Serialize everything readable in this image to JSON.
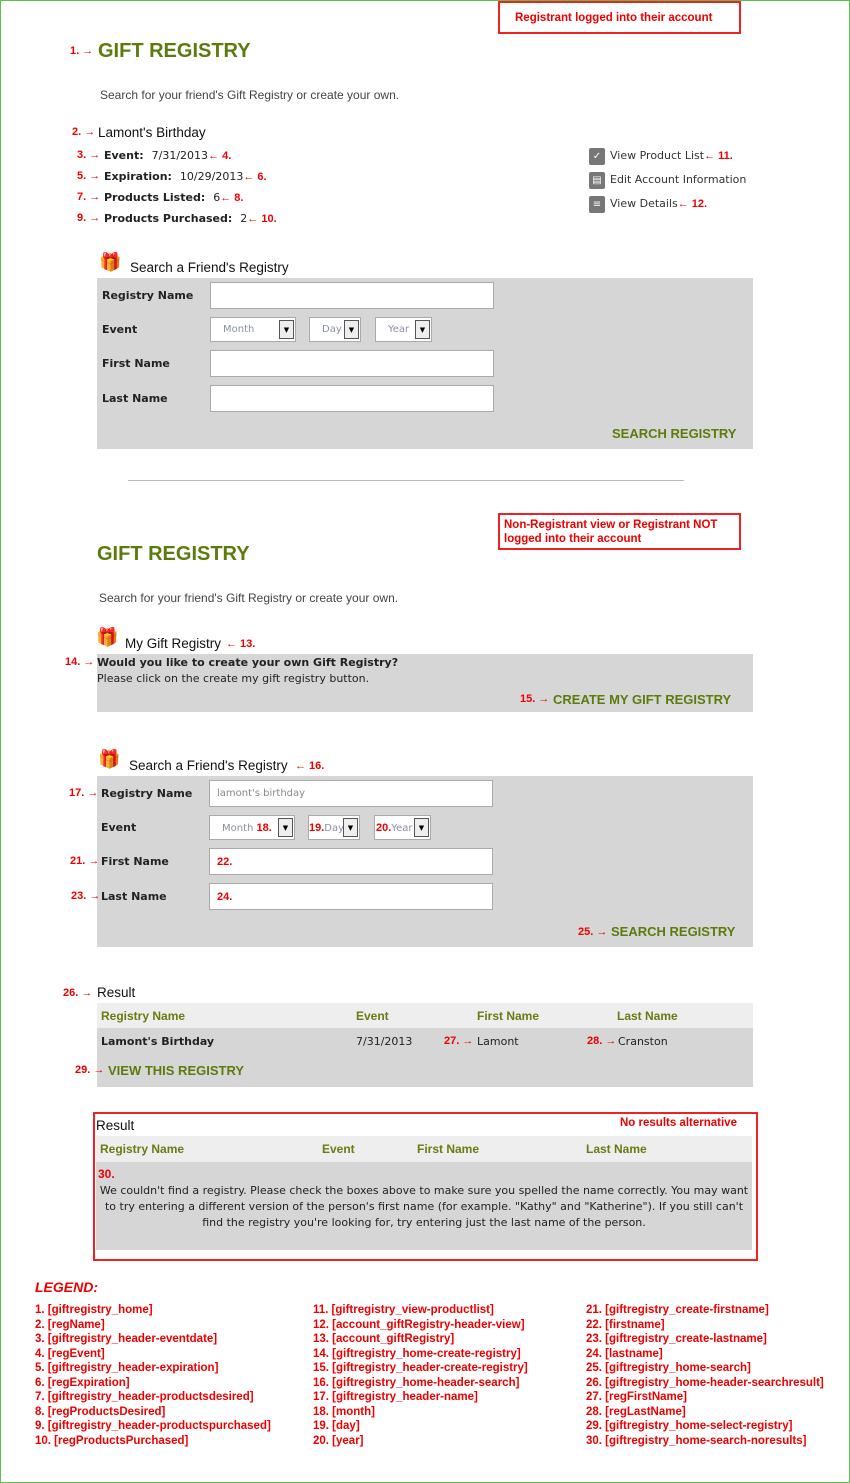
{
  "notes": {
    "logged_in": "Registrant logged into their account",
    "not_logged_in": "Non-Registrant view or Registrant NOT logged into their account",
    "no_results": "No results alternative"
  },
  "top": {
    "title": "GIFT REGISTRY",
    "subtitle": "Search for your friend's Gift Registry or create your own.",
    "registry_name": "Lamont's Birthday",
    "details": [
      {
        "label": "Event:",
        "value": "7/31/2013",
        "a1": "3. →",
        "a2": "← 4."
      },
      {
        "label": "Expiration:",
        "value": "10/29/2013",
        "a1": "5. →",
        "a2": "← 6."
      },
      {
        "label": "Products Listed:",
        "value": "6",
        "a1": "7. →",
        "a2": "← 8."
      },
      {
        "label": "Products Purchased:",
        "value": "2",
        "a1": "9. →",
        "a2": "← 10."
      }
    ],
    "links": [
      {
        "label": "View Product List",
        "icon": "clipboard-check-icon",
        "ann": "← 11."
      },
      {
        "label": "Edit Account Information",
        "icon": "id-card-icon",
        "ann": ""
      },
      {
        "label": "View Details",
        "icon": "document-icon",
        "ann": "← 12."
      }
    ],
    "search_title": "Search a Friend's Registry",
    "fields": {
      "registry_name": "Registry Name",
      "event": "Event",
      "first_name": "First Name",
      "last_name": "Last Name"
    },
    "month": "Month",
    "day": "Day",
    "year": "Year",
    "search_btn": "SEARCH REGISTRY"
  },
  "bottom": {
    "title": "GIFT REGISTRY",
    "subtitle": "Search for your friend's Gift Registry or create your own.",
    "my_registry": "My Gift Registry",
    "create_q": "Would you like to create your own Gift Registry?",
    "create_hint": "Please click on the create my gift registry button.",
    "create_btn": "CREATE MY GIFT REGISTRY",
    "search_title": "Search a Friend's Registry",
    "fields": {
      "registry_name": "Registry Name",
      "event": "Event",
      "first_name": "First Name",
      "last_name": "Last Name"
    },
    "registry_placeholder": "lamont's birthday",
    "month": "Month",
    "day": "Day",
    "year": "Year",
    "search_btn": "SEARCH REGISTRY",
    "result_title": "Result",
    "columns": [
      "Registry Name",
      "Event",
      "First Name",
      "Last Name"
    ],
    "row": {
      "name": "Lamont's Birthday",
      "event": "7/31/2013",
      "first": "Lamont",
      "last": "Cranston"
    },
    "view_btn": "VIEW THIS REGISTRY",
    "noresult_title": "Result",
    "noresult_text": "We couldn't find a registry. Please check the boxes above to make sure you spelled the name correctly. You may want to try entering a different version of the person's first name (for example. \"Kathy\" and \"Katherine\"). If you still can't find the registry you're looking for, try entering just the last name of the person."
  },
  "ann": {
    "a1": "1. →",
    "a2": "2. →",
    "a13": "← 13.",
    "a14": "14. →",
    "a15": "15. →",
    "a16": "← 16.",
    "a17": "17. →",
    "a18": "18.",
    "a19": "19.",
    "a20": "20.",
    "a21": "21. →",
    "a22": "22.",
    "a23": "23. →",
    "a24": "24.",
    "a25": "25. →",
    "a26": "26. →",
    "a27": "27. →",
    "a28": "28. →",
    "a29": "29. →",
    "a30": "30."
  },
  "legend": {
    "title": "LEGEND:",
    "items": [
      "1. [giftregistry_home]",
      "2. [regName]",
      "3. [giftregistry_header-eventdate]",
      "4. [regEvent]",
      "5. [giftregistry_header-expiration]",
      "6. [regExpiration]",
      "7. [giftregistry_header-productsdesired]",
      "8. [regProductsDesired]",
      "9. [giftregistry_header-productspurchased]",
      "10. [regProductsPurchased]",
      "11. [giftregistry_view-productlist]",
      "12. [account_giftRegistry-header-view]",
      "13. [account_giftRegistry]",
      "14. [giftregistry_home-create-registry]",
      "15. [giftregistry_header-create-registry]",
      "16. [giftregistry_home-header-search]",
      "17. [giftregistry_header-name]",
      "18. [month]",
      "19. [day]",
      "20. [year]",
      "21. [giftregistry_create-firstname]",
      "22. [firstname]",
      "23. [giftregistry_create-lastname]",
      "24. [lastname]",
      "25. [giftregistry_home-search]",
      "26. [giftregistry_home-header-searchresult]",
      "27. [regFirstName]",
      "28. [regLastName]",
      "29. [giftregistry_home-select-registry]",
      "30. [giftregistry_home-search-noresults]"
    ]
  },
  "colors": {
    "brand_green": "#5b7c0c",
    "annotation_red": "#e00000",
    "panel_gray": "#d6d6d6"
  }
}
